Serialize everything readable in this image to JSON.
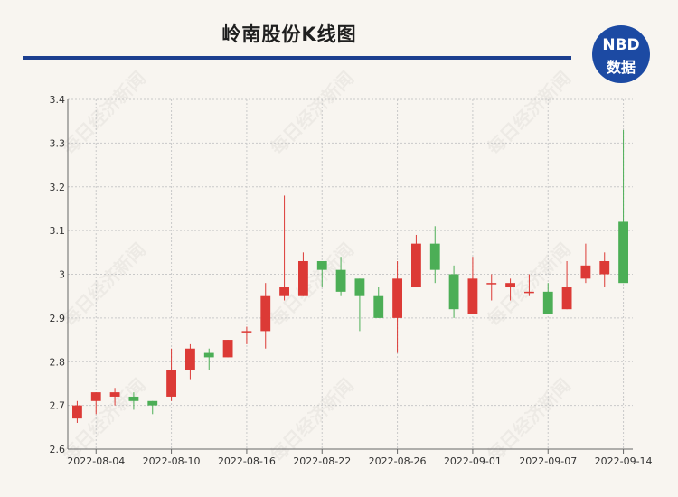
{
  "header": {
    "title": "岭南股份K线图",
    "logo_line1": "NBD",
    "logo_line2": "数据"
  },
  "watermark": "每日经济新闻",
  "colors": {
    "up": "#dc3a36",
    "down": "#4cae56",
    "title_bar": "#1c3f8f",
    "logo_bg": "#1c4aa3"
  },
  "chart_data": {
    "type": "candlestick",
    "title": "岭南股份K线图",
    "ylim": [
      2.6,
      3.4
    ],
    "yticks": [
      "2.6",
      "2.7",
      "2.8",
      "2.9",
      "3",
      "3.1",
      "3.2",
      "3.3",
      "3.4"
    ],
    "xticks": [
      "2022-08-04",
      "2022-08-10",
      "2022-08-16",
      "2022-08-22",
      "2022-08-26",
      "2022-09-01",
      "2022-09-07",
      "2022-09-14"
    ],
    "grid": true,
    "candles": [
      {
        "date": "2022-08-03",
        "open": 2.67,
        "high": 2.71,
        "low": 2.66,
        "close": 2.7
      },
      {
        "date": "2022-08-04",
        "open": 2.71,
        "high": 2.73,
        "low": 2.68,
        "close": 2.73
      },
      {
        "date": "2022-08-05",
        "open": 2.72,
        "high": 2.74,
        "low": 2.7,
        "close": 2.73
      },
      {
        "date": "2022-08-08",
        "open": 2.72,
        "high": 2.73,
        "low": 2.69,
        "close": 2.71
      },
      {
        "date": "2022-08-09",
        "open": 2.71,
        "high": 2.71,
        "low": 2.68,
        "close": 2.7
      },
      {
        "date": "2022-08-10",
        "open": 2.72,
        "high": 2.83,
        "low": 2.71,
        "close": 2.78
      },
      {
        "date": "2022-08-11",
        "open": 2.78,
        "high": 2.84,
        "low": 2.76,
        "close": 2.83
      },
      {
        "date": "2022-08-12",
        "open": 2.82,
        "high": 2.83,
        "low": 2.78,
        "close": 2.81
      },
      {
        "date": "2022-08-15",
        "open": 2.81,
        "high": 2.85,
        "low": 2.81,
        "close": 2.85
      },
      {
        "date": "2022-08-16",
        "open": 2.87,
        "high": 2.88,
        "low": 2.84,
        "close": 2.87
      },
      {
        "date": "2022-08-17",
        "open": 2.87,
        "high": 2.98,
        "low": 2.83,
        "close": 2.95
      },
      {
        "date": "2022-08-18",
        "open": 2.95,
        "high": 3.18,
        "low": 2.94,
        "close": 2.97
      },
      {
        "date": "2022-08-19",
        "open": 2.95,
        "high": 3.05,
        "low": 2.95,
        "close": 3.03
      },
      {
        "date": "2022-08-22",
        "open": 3.03,
        "high": 3.03,
        "low": 2.97,
        "close": 3.01
      },
      {
        "date": "2022-08-23",
        "open": 3.01,
        "high": 3.04,
        "low": 2.95,
        "close": 2.96
      },
      {
        "date": "2022-08-24",
        "open": 2.99,
        "high": 2.99,
        "low": 2.87,
        "close": 2.95
      },
      {
        "date": "2022-08-25",
        "open": 2.95,
        "high": 2.97,
        "low": 2.9,
        "close": 2.9
      },
      {
        "date": "2022-08-26",
        "open": 2.9,
        "high": 3.03,
        "low": 2.82,
        "close": 2.99
      },
      {
        "date": "2022-08-29",
        "open": 2.97,
        "high": 3.09,
        "low": 2.97,
        "close": 3.07
      },
      {
        "date": "2022-08-30",
        "open": 3.07,
        "high": 3.11,
        "low": 2.98,
        "close": 3.01
      },
      {
        "date": "2022-08-31",
        "open": 3.0,
        "high": 3.02,
        "low": 2.9,
        "close": 2.92
      },
      {
        "date": "2022-09-01",
        "open": 2.91,
        "high": 3.04,
        "low": 2.91,
        "close": 2.99
      },
      {
        "date": "2022-09-02",
        "open": 2.98,
        "high": 3.0,
        "low": 2.94,
        "close": 2.98
      },
      {
        "date": "2022-09-05",
        "open": 2.97,
        "high": 2.99,
        "low": 2.94,
        "close": 2.98
      },
      {
        "date": "2022-09-06",
        "open": 2.96,
        "high": 3.0,
        "low": 2.95,
        "close": 2.96
      },
      {
        "date": "2022-09-07",
        "open": 2.96,
        "high": 2.98,
        "low": 2.91,
        "close": 2.91
      },
      {
        "date": "2022-09-08",
        "open": 2.92,
        "high": 3.03,
        "low": 2.92,
        "close": 2.97
      },
      {
        "date": "2022-09-09",
        "open": 2.99,
        "high": 3.07,
        "low": 2.98,
        "close": 3.02
      },
      {
        "date": "2022-09-13",
        "open": 3.0,
        "high": 3.05,
        "low": 2.97,
        "close": 3.03
      },
      {
        "date": "2022-09-14",
        "open": 3.12,
        "high": 3.33,
        "low": 2.98,
        "close": 2.98
      }
    ]
  }
}
